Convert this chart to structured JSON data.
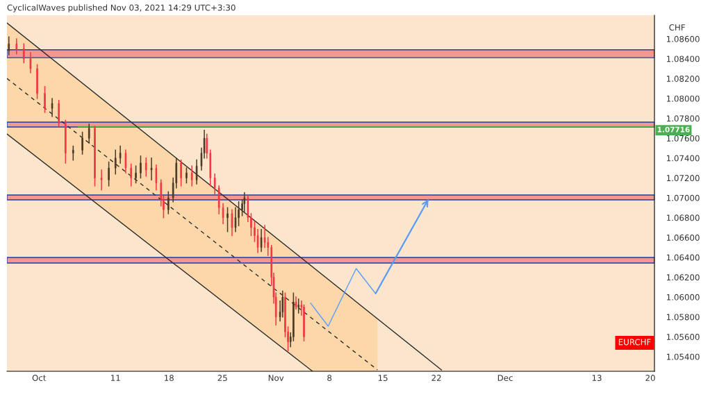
{
  "chart_data": {
    "type": "candlestick",
    "title": "CyclicalWaves published Nov 03, 2021 14:29 UTC+3:30",
    "ylabel": "CHF",
    "annotations": [
      "EURCHF"
    ],
    "xlim": [
      "2021-09-26T19:00",
      "2021-12-20T13:00"
    ],
    "xticks": [
      {
        "value": "2021-10-01",
        "label": "Oct"
      },
      {
        "value": "2021-10-11",
        "label": "11"
      },
      {
        "value": "2021-10-18",
        "label": "18"
      },
      {
        "value": "2021-10-25",
        "label": "25"
      },
      {
        "value": "2021-11-01",
        "label": "Nov"
      },
      {
        "value": "2021-11-08",
        "label": "8"
      },
      {
        "value": "2021-11-15",
        "label": "15"
      },
      {
        "value": "2021-11-22",
        "label": "22"
      },
      {
        "value": "2021-12-01",
        "label": "Dec"
      },
      {
        "value": "2021-12-13",
        "label": "13"
      },
      {
        "value": "2021-12-20",
        "label": "20"
      }
    ],
    "ylim": [
      1.05253,
      1.08838
    ],
    "yticks": [
      {
        "value": 1.054,
        "label": "1.05400"
      },
      {
        "value": 1.056,
        "label": "1.05600"
      },
      {
        "value": 1.058,
        "label": "1.05800"
      },
      {
        "value": 1.06,
        "label": "1.06000"
      },
      {
        "value": 1.062,
        "label": "1.06200"
      },
      {
        "value": 1.064,
        "label": "1.06400"
      },
      {
        "value": 1.066,
        "label": "1.06600"
      },
      {
        "value": 1.068,
        "label": "1.06800"
      },
      {
        "value": 1.07,
        "label": "1.07000"
      },
      {
        "value": 1.072,
        "label": "1.07200"
      },
      {
        "value": 1.074,
        "label": "1.07400"
      },
      {
        "value": 1.076,
        "label": "1.07600"
      },
      {
        "value": 1.078,
        "label": "1.07800"
      },
      {
        "value": 1.08,
        "label": "1.08000"
      },
      {
        "value": 1.082,
        "label": "1.08200"
      },
      {
        "value": 1.084,
        "label": "1.08400"
      },
      {
        "value": 1.086,
        "label": "1.08600"
      }
    ],
    "grid": false,
    "bands": [
      {
        "axis": "y",
        "from": 1.08411,
        "to": 1.0849,
        "color": "#f4978e"
      },
      {
        "axis": "y",
        "from": 1.07713,
        "to": 1.07762,
        "color": "#f4978e"
      },
      {
        "axis": "y",
        "from": 1.06979,
        "to": 1.07028,
        "color": "#f4978e"
      },
      {
        "axis": "y",
        "from": 1.06343,
        "to": 1.06399,
        "color": "#f4978e"
      }
    ],
    "ref_lines": [
      {
        "axis": "y",
        "value": 1.07716,
        "label": "1.07716",
        "color": "#4caf50"
      }
    ],
    "series": [
      {
        "color": "#4a3b28",
        "x": [
          "2021-09-27T01:00",
          "2021-10-02T17:00",
          "2021-10-05T11:00",
          "2021-10-06T16:00",
          "2021-10-07T13:00",
          "2021-10-10T03:00",
          "2021-10-11T00:00",
          "2021-10-11T15:00",
          "2021-10-13T16:00",
          "2021-10-14T07:00",
          "2021-10-15T17:00",
          "2021-10-17T22:00",
          "2021-10-18T13:00",
          "2021-10-18T23:00",
          "2021-10-20T07:00",
          "2021-10-21T15:00",
          "2021-10-22T06:00",
          "2021-10-22T15:00",
          "2021-10-25T16:00",
          "2021-10-26T17:00",
          "2021-10-27T03:00",
          "2021-10-27T14:00",
          "2021-10-27T21:00",
          "2021-10-30T02:00",
          "2021-11-01T13:00",
          "2021-11-01T21:00",
          "2021-11-02T22:00",
          "2021-11-03T07:00",
          "2021-11-03T23:00"
        ],
        "ohlc": [
          [
            1.0848,
            1.0862,
            1.0844,
            1.0855
          ],
          [
            1.079,
            1.08,
            1.0782,
            1.0795
          ],
          [
            1.0745,
            1.0752,
            1.0738,
            1.0748
          ],
          [
            1.0748,
            1.0766,
            1.0744,
            1.076
          ],
          [
            1.076,
            1.0774,
            1.0755,
            1.077
          ],
          [
            1.0718,
            1.0736,
            1.0712,
            1.073
          ],
          [
            1.073,
            1.0748,
            1.0724,
            1.074
          ],
          [
            1.074,
            1.0752,
            1.0735,
            1.0745
          ],
          [
            1.072,
            1.0732,
            1.0715,
            1.0725
          ],
          [
            1.0725,
            1.0742,
            1.072,
            1.0735
          ],
          [
            1.0728,
            1.074,
            1.0718,
            1.073
          ],
          [
            1.0688,
            1.0706,
            1.0684,
            1.07
          ],
          [
            1.07,
            1.072,
            1.0696,
            1.0715
          ],
          [
            1.0715,
            1.074,
            1.071,
            1.0735
          ],
          [
            1.072,
            1.073,
            1.0715,
            1.0725
          ],
          [
            1.0718,
            1.0738,
            1.0714,
            1.0732
          ],
          [
            1.0732,
            1.075,
            1.0728,
            1.0745
          ],
          [
            1.0745,
            1.0768,
            1.074,
            1.076
          ],
          [
            1.068,
            1.069,
            1.0666,
            1.0684
          ],
          [
            1.067,
            1.069,
            1.0666,
            1.068
          ],
          [
            1.068,
            1.0696,
            1.0672,
            1.0688
          ],
          [
            1.0688,
            1.0698,
            1.0682,
            1.0694
          ],
          [
            1.0694,
            1.0705,
            1.0686,
            1.07
          ],
          [
            1.065,
            1.0668,
            1.0646,
            1.066
          ],
          [
            1.058,
            1.0596,
            1.0576,
            1.0585
          ],
          [
            1.0585,
            1.0606,
            1.058,
            1.06
          ],
          [
            1.0555,
            1.0564,
            1.055,
            1.056
          ],
          [
            1.056,
            1.0604,
            1.0556,
            1.0595
          ],
          [
            1.059,
            1.0598,
            1.0584,
            1.0592
          ]
        ]
      },
      {
        "color": "#f23645",
        "x": [
          "2021-09-28T01:00",
          "2021-09-29T00:00",
          "2021-09-29T21:00",
          "2021-09-30T18:00",
          "2021-10-01T18:00",
          "2021-10-03T14:00",
          "2021-10-04T11:00",
          "2021-10-08T07:00",
          "2021-10-09T04:00",
          "2021-10-12T08:00",
          "2021-10-13T01:00",
          "2021-10-15T00:00",
          "2021-10-16T08:00",
          "2021-10-16T23:00",
          "2021-10-17T07:00",
          "2021-10-19T14:00",
          "2021-10-21T00:00",
          "2021-10-22T23:00",
          "2021-10-23T10:00",
          "2021-10-24T00:00",
          "2021-10-24T13:00",
          "2021-10-25T02:00",
          "2021-10-26T06:00",
          "2021-10-28T08:00",
          "2021-10-28T18:00",
          "2021-10-29T05:00",
          "2021-10-29T15:00",
          "2021-10-30T13:00",
          "2021-10-30T23:00",
          "2021-10-31T10:00",
          "2021-10-31T17:00",
          "2021-11-01T00:00",
          "2021-11-02T05:00",
          "2021-11-02T14:00",
          "2021-11-03T15:00",
          "2021-11-04T08:00",
          "2021-11-04T16:00"
        ],
        "ohlc": [
          [
            1.0855,
            1.086,
            1.0845,
            1.085
          ],
          [
            1.085,
            1.0855,
            1.0836,
            1.084
          ],
          [
            1.084,
            1.0846,
            1.0826,
            1.083
          ],
          [
            1.083,
            1.0834,
            1.08,
            1.0805
          ],
          [
            1.0805,
            1.0812,
            1.0786,
            1.079
          ],
          [
            1.0795,
            1.0798,
            1.0772,
            1.0775
          ],
          [
            1.0775,
            1.0778,
            1.0735,
            1.0745
          ],
          [
            1.077,
            1.0772,
            1.0712,
            1.072
          ],
          [
            1.072,
            1.0728,
            1.0708,
            1.0718
          ],
          [
            1.0745,
            1.0748,
            1.0725,
            1.073
          ],
          [
            1.073,
            1.0734,
            1.0712,
            1.072
          ],
          [
            1.0735,
            1.074,
            1.0722,
            1.0728
          ],
          [
            1.073,
            1.0733,
            1.0708,
            1.0715
          ],
          [
            1.0715,
            1.0718,
            1.0692,
            1.0698
          ],
          [
            1.0698,
            1.0702,
            1.068,
            1.0688
          ],
          [
            1.0735,
            1.0738,
            1.0712,
            1.072
          ],
          [
            1.0725,
            1.0732,
            1.0712,
            1.0718
          ],
          [
            1.076,
            1.0764,
            1.074,
            1.0745
          ],
          [
            1.0745,
            1.0748,
            1.0712,
            1.072
          ],
          [
            1.072,
            1.0724,
            1.0704,
            1.071
          ],
          [
            1.071,
            1.0712,
            1.0684,
            1.069
          ],
          [
            1.069,
            1.0694,
            1.0674,
            1.068
          ],
          [
            1.0684,
            1.0688,
            1.0662,
            1.067
          ],
          [
            1.07,
            1.0702,
            1.0676,
            1.068
          ],
          [
            1.068,
            1.0684,
            1.0662,
            1.067
          ],
          [
            1.067,
            1.0676,
            1.0656,
            1.0662
          ],
          [
            1.0662,
            1.0668,
            1.0645,
            1.065
          ],
          [
            1.066,
            1.0672,
            1.065,
            1.0655
          ],
          [
            1.0655,
            1.066,
            1.0642,
            1.065
          ],
          [
            1.065,
            1.0652,
            1.0612,
            1.062
          ],
          [
            1.062,
            1.0624,
            1.0594,
            1.06
          ],
          [
            1.06,
            1.0604,
            1.0572,
            1.058
          ],
          [
            1.06,
            1.0604,
            1.056,
            1.0565
          ],
          [
            1.0565,
            1.057,
            1.0546,
            1.0555
          ],
          [
            1.0595,
            1.06,
            1.0588,
            1.059
          ],
          [
            1.0592,
            1.0596,
            1.0582,
            1.059
          ],
          [
            1.059,
            1.0592,
            1.0556,
            1.056
          ]
        ]
      },
      {
        "type": "line",
        "color": "#2b2b2b",
        "line_style": "solid",
        "x": [
          "2021-09-26T19:00",
          "2021-11-22T16:00"
        ],
        "values": [
          1.08761,
          1.05267
        ]
      },
      {
        "type": "line",
        "color": "#2b2b2b",
        "line_style": "dashed",
        "x": [
          "2021-09-26T19:00",
          "2021-11-05T19:00",
          "2021-11-14T07:00"
        ],
        "values": [
          1.08202,
          1.05781,
          1.05267
        ],
        "lower": [
          1.07643,
          1.05253,
          1.05253
        ],
        "upper": [
          1.08761,
          1.06305,
          1.05783
        ]
      },
      {
        "type": "line",
        "color": "#2b2b2b",
        "line_style": "solid",
        "x": [
          "2021-09-26T19:00",
          "2021-11-05T19:00"
        ],
        "values": [
          1.07643,
          1.05253
        ]
      },
      {
        "type": "line",
        "color": "#5b9cf6",
        "line_style": "solid",
        "x": [
          "2021-11-05T13:00",
          "2021-11-07T20:00",
          "2021-11-11T12:00",
          "2021-11-14T01:00",
          "2021-11-20T23:00"
        ],
        "values": [
          1.05938,
          1.05707,
          1.06287,
          1.06036,
          1.06986
        ]
      }
    ]
  }
}
